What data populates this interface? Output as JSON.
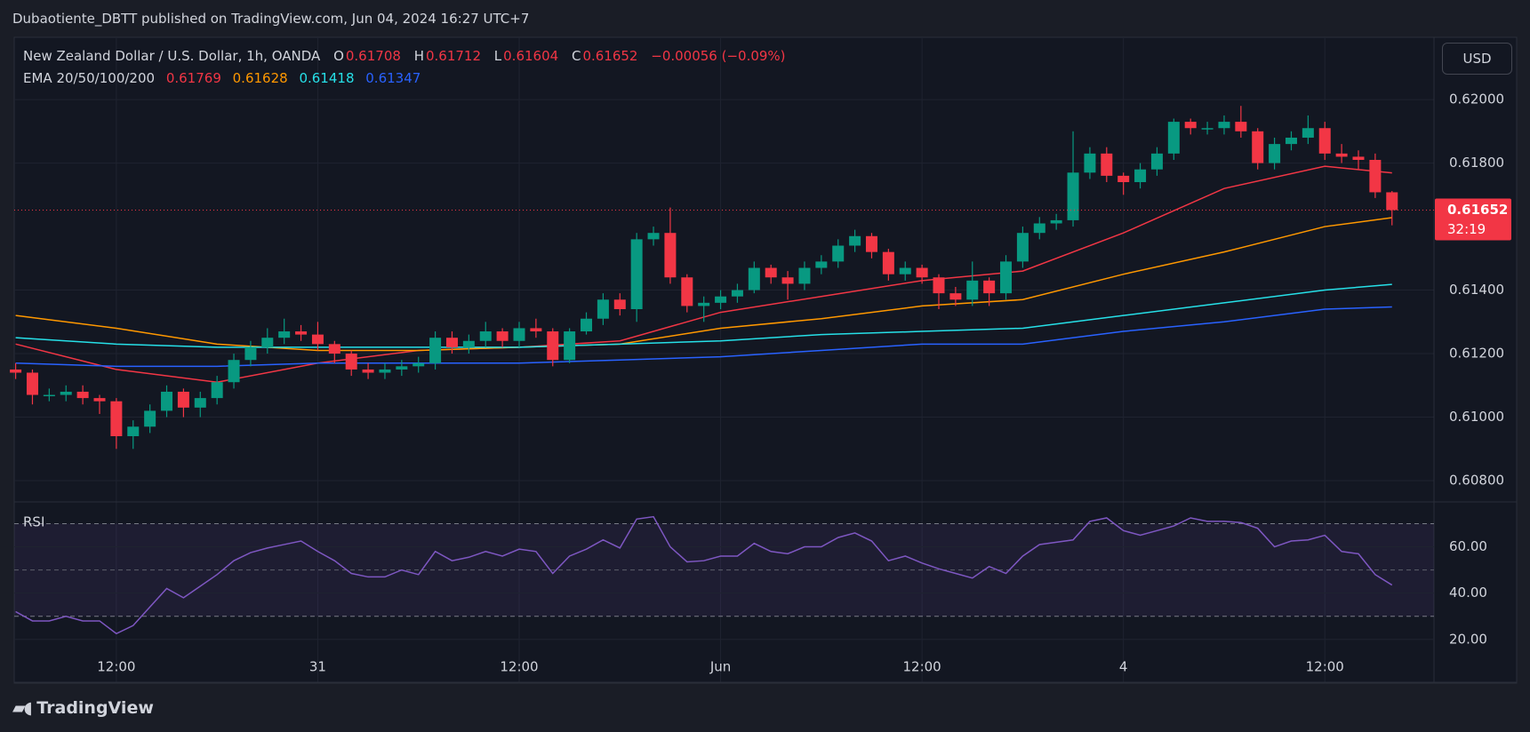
{
  "header": {
    "publisher": "Dubaotiente_DBTT published on TradingView.com, Jun 04, 2024 16:27 UTC+7"
  },
  "chart_data": {
    "type": "candlestick",
    "title": "New Zealand Dollar / U.S. Dollar, 1h, OANDA",
    "ohlc_labels": [
      "O",
      "H",
      "L",
      "C"
    ],
    "change": "−0.00056 (−0.09%)",
    "indicator_title": "EMA 20/50/100/200",
    "currency": "USD",
    "countdown": "32:19",
    "categories": [
      null,
      null,
      null,
      null,
      null,
      null,
      "12:00",
      null,
      null,
      null,
      null,
      null,
      null,
      null,
      null,
      null,
      null,
      null,
      "31",
      null,
      null,
      null,
      null,
      null,
      null,
      null,
      null,
      null,
      null,
      null,
      "12:00",
      null,
      null,
      null,
      null,
      null,
      null,
      null,
      null,
      null,
      null,
      null,
      "Jun",
      null,
      null,
      null,
      null,
      null,
      null,
      null,
      null,
      null,
      null,
      null,
      "12:00",
      null,
      null,
      null,
      null,
      null,
      null,
      null,
      null,
      null,
      null,
      null,
      "4",
      null,
      null,
      null,
      null,
      null,
      null,
      null,
      null,
      null,
      null,
      null,
      "12:00",
      null,
      null,
      null,
      null
    ],
    "open": [
      0.6115,
      0.6114,
      0.6107,
      0.6107,
      0.6108,
      0.6106,
      0.6105,
      0.6094,
      0.6097,
      0.6102,
      0.6108,
      0.6103,
      0.6106,
      0.6111,
      0.6118,
      0.6122,
      0.6125,
      0.6127,
      0.6126,
      0.6123,
      0.612,
      0.6115,
      0.6114,
      0.6115,
      0.6116,
      0.6117,
      0.6125,
      0.6122,
      0.6124,
      0.6127,
      0.6124,
      0.6128,
      0.6127,
      0.6118,
      0.6127,
      0.6131,
      0.6137,
      0.6134,
      0.6156,
      0.6158,
      0.6144,
      0.6135,
      0.6136,
      0.6138,
      0.614,
      0.6147,
      0.6144,
      0.6142,
      0.6147,
      0.6149,
      0.6154,
      0.6157,
      0.6152,
      0.6145,
      0.6147,
      0.6144,
      0.6139,
      0.6137,
      0.6143,
      0.6139,
      0.6149,
      0.6158,
      0.6161,
      0.6162,
      0.6177,
      0.6183,
      0.6176,
      0.6174,
      0.6178,
      0.6183,
      0.6193,
      0.6191,
      0.6191,
      0.6193,
      0.619,
      0.618,
      0.6186,
      0.6188,
      0.6191,
      0.6183,
      0.6182,
      0.6181,
      0.61708
    ],
    "high": [
      0.6117,
      0.6115,
      0.6109,
      0.611,
      0.611,
      0.6107,
      0.6106,
      0.6099,
      0.6104,
      0.611,
      0.6109,
      0.6108,
      0.6113,
      0.612,
      0.6124,
      0.6128,
      0.6131,
      0.6129,
      0.613,
      0.6124,
      0.6121,
      0.6117,
      0.6117,
      0.6118,
      0.6119,
      0.6127,
      0.6127,
      0.6126,
      0.613,
      0.6128,
      0.613,
      0.6131,
      0.6128,
      0.6128,
      0.6133,
      0.6139,
      0.6139,
      0.6158,
      0.616,
      0.6166,
      0.6145,
      0.6138,
      0.614,
      0.6142,
      0.6149,
      0.6148,
      0.6146,
      0.6149,
      0.6151,
      0.6156,
      0.6159,
      0.6158,
      0.6153,
      0.6149,
      0.6148,
      0.6145,
      0.6141,
      0.6149,
      0.6144,
      0.6151,
      0.616,
      0.6163,
      0.6164,
      0.619,
      0.6185,
      0.6185,
      0.6177,
      0.618,
      0.6185,
      0.6194,
      0.6194,
      0.6193,
      0.6195,
      0.6198,
      0.6191,
      0.6188,
      0.619,
      0.6195,
      0.6193,
      0.6186,
      0.6184,
      0.6183,
      0.61712
    ],
    "low": [
      0.6112,
      0.6104,
      0.6105,
      0.6105,
      0.6104,
      0.6101,
      0.609,
      0.609,
      0.6095,
      0.61,
      0.61,
      0.61,
      0.6104,
      0.6109,
      0.6116,
      0.612,
      0.6123,
      0.6124,
      0.6121,
      0.6117,
      0.6113,
      0.6112,
      0.6112,
      0.6113,
      0.6114,
      0.6115,
      0.612,
      0.612,
      0.6122,
      0.6122,
      0.6122,
      0.6125,
      0.6116,
      0.6117,
      0.6126,
      0.6129,
      0.6132,
      0.613,
      0.6154,
      0.6142,
      0.6133,
      0.613,
      0.6134,
      0.6136,
      0.6139,
      0.6142,
      0.6137,
      0.614,
      0.6145,
      0.6147,
      0.6152,
      0.615,
      0.6143,
      0.6143,
      0.6142,
      0.6134,
      0.6135,
      0.6135,
      0.6135,
      0.6137,
      0.6147,
      0.6156,
      0.6159,
      0.616,
      0.6175,
      0.6174,
      0.617,
      0.6172,
      0.6176,
      0.6181,
      0.6189,
      0.6189,
      0.6189,
      0.6188,
      0.6178,
      0.6178,
      0.6184,
      0.6186,
      0.6181,
      0.618,
      0.6178,
      0.6169,
      0.61604
    ],
    "close": [
      0.6114,
      0.6107,
      0.6107,
      0.6108,
      0.6106,
      0.6105,
      0.6094,
      0.6097,
      0.6102,
      0.6108,
      0.6103,
      0.6106,
      0.6111,
      0.6118,
      0.6122,
      0.6125,
      0.6127,
      0.6126,
      0.6123,
      0.612,
      0.6115,
      0.6114,
      0.6115,
      0.6116,
      0.6117,
      0.6125,
      0.6122,
      0.6124,
      0.6127,
      0.6124,
      0.6128,
      0.6127,
      0.6118,
      0.6127,
      0.6131,
      0.6137,
      0.6134,
      0.6156,
      0.6158,
      0.6144,
      0.6135,
      0.6136,
      0.6138,
      0.614,
      0.6147,
      0.6144,
      0.6142,
      0.6147,
      0.6149,
      0.6154,
      0.6157,
      0.6152,
      0.6145,
      0.6147,
      0.6144,
      0.6139,
      0.6137,
      0.6143,
      0.6139,
      0.6149,
      0.6158,
      0.6161,
      0.6162,
      0.6177,
      0.6183,
      0.6176,
      0.6174,
      0.6178,
      0.6183,
      0.6193,
      0.6191,
      0.6191,
      0.6193,
      0.619,
      0.618,
      0.6186,
      0.6188,
      0.6191,
      0.6183,
      0.6182,
      0.6181,
      0.61708,
      0.61652
    ],
    "up_color": "#089981",
    "down_color": "#f23645",
    "ylim": [
      0.60733,
      0.62196
    ],
    "yticks": [
      {
        "value": 0.608,
        "label": "0.60800"
      },
      {
        "value": 0.61,
        "label": "0.61000"
      },
      {
        "value": 0.612,
        "label": "0.61200"
      },
      {
        "value": 0.614,
        "label": "0.61400"
      },
      {
        "value": 0.618,
        "label": "0.61800"
      },
      {
        "value": 0.62,
        "label": "0.62000"
      }
    ],
    "grid": true,
    "overlays": [
      {
        "color": "#f23645",
        "x": [
          0,
          6,
          12,
          18,
          24,
          30,
          36,
          42,
          48,
          54,
          60,
          66,
          72,
          78,
          82
        ],
        "values": [
          0.6123,
          0.6115,
          0.6111,
          0.6117,
          0.6121,
          0.6122,
          0.6124,
          0.6133,
          0.6138,
          0.6143,
          0.6146,
          0.6158,
          0.6172,
          0.6179,
          0.61769
        ]
      },
      {
        "color": "#ff9800",
        "x": [
          0,
          6,
          12,
          18,
          24,
          30,
          36,
          42,
          48,
          54,
          60,
          66,
          72,
          78,
          82
        ],
        "values": [
          0.6132,
          0.6128,
          0.6123,
          0.6121,
          0.6121,
          0.6122,
          0.6123,
          0.6128,
          0.6131,
          0.6135,
          0.6137,
          0.6145,
          0.6152,
          0.616,
          0.61628
        ]
      },
      {
        "color": "#26e0e8",
        "x": [
          0,
          6,
          12,
          18,
          24,
          30,
          36,
          42,
          48,
          54,
          60,
          66,
          72,
          78,
          82
        ],
        "values": [
          0.6125,
          0.6123,
          0.6122,
          0.6122,
          0.6122,
          0.6122,
          0.6123,
          0.6124,
          0.6126,
          0.6127,
          0.6128,
          0.6132,
          0.6136,
          0.614,
          0.61418
        ]
      },
      {
        "color": "#2962ff",
        "x": [
          0,
          6,
          12,
          18,
          24,
          30,
          36,
          42,
          48,
          54,
          60,
          66,
          72,
          78,
          82
        ],
        "values": [
          0.6117,
          0.6116,
          0.6116,
          0.6117,
          0.6117,
          0.6117,
          0.6118,
          0.6119,
          0.6121,
          0.6123,
          0.6123,
          0.6127,
          0.613,
          0.6134,
          0.61347
        ]
      }
    ],
    "rsi": {
      "title": "RSI",
      "color": "#7e57c2",
      "values": [
        32,
        28,
        28,
        30,
        28,
        28,
        22.5,
        26,
        34,
        42,
        38,
        43,
        48,
        54,
        57.5,
        59.5,
        61,
        62.5,
        58,
        54,
        48.5,
        47,
        47,
        50,
        48,
        58,
        54,
        55.5,
        58,
        56,
        59,
        58,
        48.5,
        56,
        59,
        63,
        59.5,
        72,
        73,
        60,
        53.5,
        54,
        56,
        56,
        61.5,
        58,
        57,
        60,
        60,
        64,
        66,
        62.5,
        54,
        56,
        53,
        50.5,
        48.5,
        46.5,
        51.5,
        48.5,
        56,
        61,
        62,
        63,
        71,
        72.5,
        67,
        65,
        67,
        69,
        72.5,
        71,
        71,
        70.5,
        68,
        60,
        62.5,
        63,
        65,
        58,
        57,
        48,
        43.5
      ],
      "ylim": [
        1.5,
        79.4
      ],
      "yticks": [
        {
          "value": 20,
          "label": "20.00"
        },
        {
          "value": 40,
          "label": "40.00"
        },
        {
          "value": 60,
          "label": "60.00"
        }
      ],
      "bands": [
        30,
        70
      ],
      "midline": 50
    }
  },
  "footer": {
    "brand": "TradingView"
  }
}
